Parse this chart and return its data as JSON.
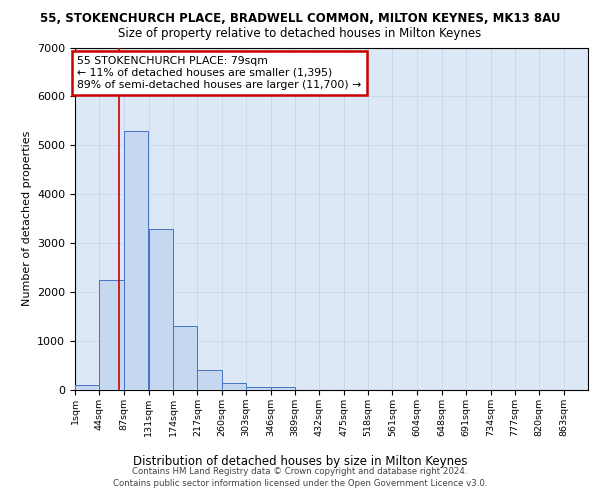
{
  "title_line1": "55, STOKENCHURCH PLACE, BRADWELL COMMON, MILTON KEYNES, MK13 8AU",
  "title_line2": "Size of property relative to detached houses in Milton Keynes",
  "xlabel": "Distribution of detached houses by size in Milton Keynes",
  "ylabel": "Number of detached properties",
  "footer": "Contains HM Land Registry data © Crown copyright and database right 2024.\nContains public sector information licensed under the Open Government Licence v3.0.",
  "annotation_text": "55 STOKENCHURCH PLACE: 79sqm\n← 11% of detached houses are smaller (1,395)\n89% of semi-detached houses are larger (11,700) →",
  "bin_labels": [
    "1sqm",
    "44sqm",
    "87sqm",
    "131sqm",
    "174sqm",
    "217sqm",
    "260sqm",
    "303sqm",
    "346sqm",
    "389sqm",
    "432sqm",
    "475sqm",
    "518sqm",
    "561sqm",
    "604sqm",
    "648sqm",
    "691sqm",
    "734sqm",
    "777sqm",
    "820sqm",
    "863sqm"
  ],
  "bin_edges": [
    1,
    44,
    87,
    131,
    174,
    217,
    260,
    303,
    346,
    389,
    432,
    475,
    518,
    561,
    604,
    648,
    691,
    734,
    777,
    820,
    863
  ],
  "bar_heights": [
    100,
    2250,
    5300,
    3300,
    1300,
    400,
    140,
    60,
    60,
    0,
    0,
    0,
    0,
    0,
    0,
    0,
    0,
    0,
    0,
    0
  ],
  "bar_color": "#c5d8f0",
  "bar_edge_color": "#4472c4",
  "grid_color": "#c8d8e8",
  "background_color": "#ffffff",
  "plot_bg_color": "#dce8f5",
  "vline_x": 79,
  "vline_color": "#cc0000",
  "annotation_box_color": "#cc0000",
  "ylim": [
    0,
    7000
  ],
  "yticks": [
    0,
    1000,
    2000,
    3000,
    4000,
    5000,
    6000,
    7000
  ],
  "bin_width": 43
}
